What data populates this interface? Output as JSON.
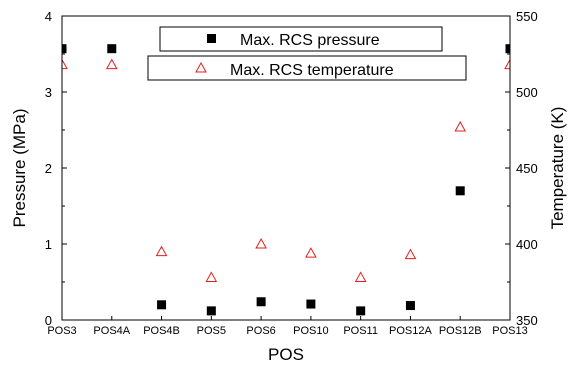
{
  "chart_data": {
    "type": "scatter",
    "categories": [
      "POS3",
      "POS4A",
      "POS4B",
      "POS5",
      "POS6",
      "POS10",
      "POS11",
      "POS12A",
      "POS12B",
      "POS13"
    ],
    "xlabel": "POS",
    "ylabel": "Pressure (MPa)",
    "y2label": "Temperature (K)",
    "ylim": [
      0,
      4
    ],
    "y2lim": [
      350,
      550
    ],
    "yticks": [
      "0",
      "1",
      "2",
      "3",
      "4"
    ],
    "y2ticks": [
      "350",
      "400",
      "450",
      "500",
      "550"
    ],
    "legend_position": "top-center",
    "grid": false,
    "series": [
      {
        "name": "Max. RCS pressure",
        "axis": "left",
        "marker": "filled-square",
        "color": "#000000",
        "values": [
          3.57,
          3.57,
          0.2,
          0.12,
          0.24,
          0.21,
          0.12,
          0.19,
          1.7,
          3.57
        ]
      },
      {
        "name": "Max. RCS temperature",
        "axis": "right",
        "marker": "open-triangle",
        "color": "#e0201c",
        "values": [
          518,
          518,
          395,
          378,
          400,
          394,
          378,
          393,
          477,
          518
        ]
      }
    ]
  }
}
